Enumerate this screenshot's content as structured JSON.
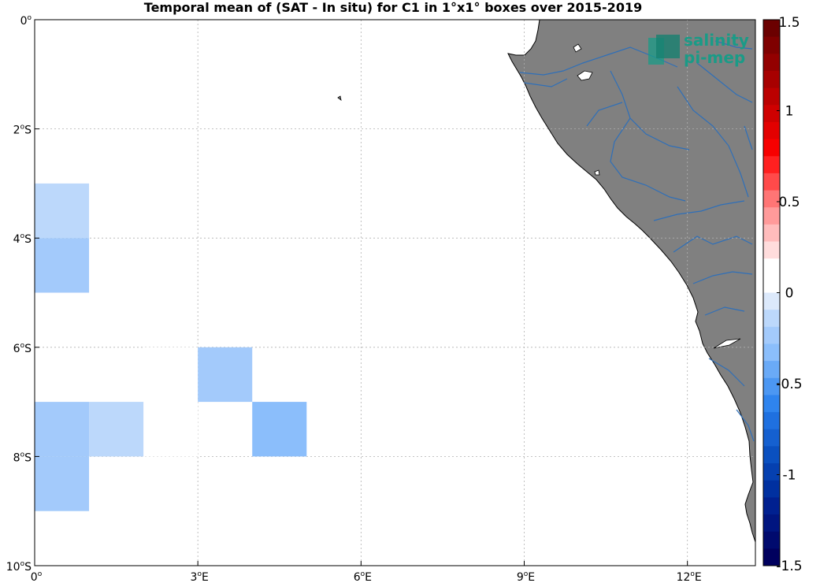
{
  "title": "Temporal mean of (SAT - In situ) for C1 in 1°x1° boxes over 2015-2019",
  "logo": {
    "line1": "salinity",
    "line2": "pi-mep",
    "color": "#1a9b87"
  },
  "axes": {
    "lon_range": [
      0,
      13.25
    ],
    "lat_range": [
      -10,
      0
    ],
    "x_ticks": [
      {
        "value": 0,
        "num": "0",
        "deg": "o",
        "hem": ""
      },
      {
        "value": 3,
        "num": "3",
        "deg": "o",
        "hem": "E"
      },
      {
        "value": 6,
        "num": "6",
        "deg": "o",
        "hem": "E"
      },
      {
        "value": 9,
        "num": "9",
        "deg": "o",
        "hem": "E"
      },
      {
        "value": 12,
        "num": "12",
        "deg": "o",
        "hem": "E"
      }
    ],
    "y_ticks": [
      {
        "value": 0,
        "num": "0",
        "deg": "o",
        "hem": ""
      },
      {
        "value": -2,
        "num": "2",
        "deg": "o",
        "hem": "S"
      },
      {
        "value": -4,
        "num": "4",
        "deg": "o",
        "hem": "S"
      },
      {
        "value": -6,
        "num": "6",
        "deg": "o",
        "hem": "S"
      },
      {
        "value": -8,
        "num": "8",
        "deg": "o",
        "hem": "S"
      },
      {
        "value": -10,
        "num": "10",
        "deg": "o",
        "hem": "S"
      }
    ],
    "grid": true
  },
  "colors": {
    "land": "#808080",
    "rivers": "#2f6fb8",
    "coast": "#000000",
    "grid": "#b0b0b0"
  },
  "colorbar": {
    "range": [
      -1.5,
      1.5
    ],
    "ticks": [
      {
        "value": 1.5,
        "label": "1.5"
      },
      {
        "value": 1,
        "label": "1"
      },
      {
        "value": 0.5,
        "label": "0.5"
      },
      {
        "value": 0,
        "label": "0"
      },
      {
        "value": -0.5,
        "label": "-0.5"
      },
      {
        "value": -1,
        "label": "-1"
      },
      {
        "value": -1.5,
        "label": "-1.5"
      }
    ],
    "colors_top_to_bottom": [
      "#6b0000",
      "#7f0000",
      "#930000",
      "#a70000",
      "#bb0000",
      "#cf0000",
      "#e30000",
      "#f70000",
      "#ff2020",
      "#ff4a4a",
      "#ff7575",
      "#ff9a9a",
      "#ffbcbc",
      "#ffdcdc",
      "#ffffff",
      "#ffffff",
      "#dce9fb",
      "#bcd8fb",
      "#a3cafb",
      "#8bbefb",
      "#6aaaf7",
      "#4c97f2",
      "#2f84ee",
      "#1f70e0",
      "#1560d0",
      "#0a50c0",
      "#0540b0",
      "#0030a0",
      "#002090",
      "#001580",
      "#000a6e",
      "#00005e"
    ]
  },
  "chart_data": {
    "type": "heatmap",
    "title": "Temporal mean of (SAT - In situ) for C1 in 1°x1° boxes over 2015-2019",
    "cells": [
      {
        "lon": 0.5,
        "lat": -3.5,
        "value": -0.1
      },
      {
        "lon": 0.5,
        "lat": -4.5,
        "value": -0.2
      },
      {
        "lon": 2.5,
        "lat": -6.5,
        "value": 0.1
      },
      {
        "lon": 2.5,
        "lat": -7.5,
        "value": 0.1
      },
      {
        "lon": 3.5,
        "lat": -6.5,
        "value": -0.2
      },
      {
        "lon": 4.5,
        "lat": -7.5,
        "value": -0.35
      },
      {
        "lon": 0.5,
        "lat": -7.5,
        "value": -0.2
      },
      {
        "lon": 0.5,
        "lat": -8.5,
        "value": -0.2
      },
      {
        "lon": 1.5,
        "lat": -7.5,
        "value": -0.1
      }
    ],
    "colorbar_range": [
      -1.5,
      1.5
    ]
  }
}
